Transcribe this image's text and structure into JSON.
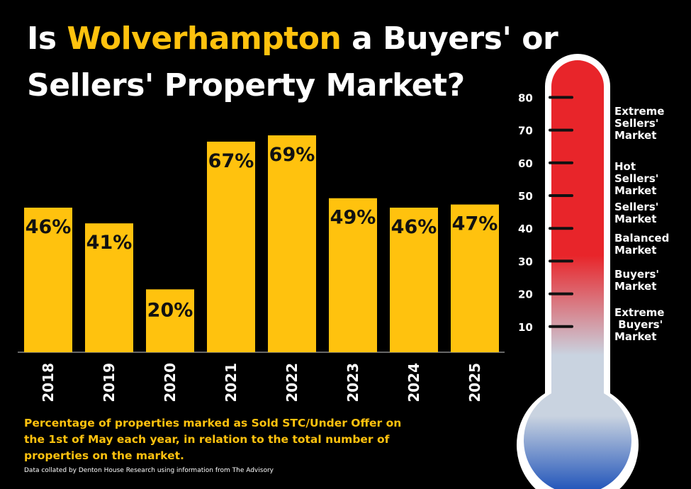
{
  "title": {
    "prefix": "Is ",
    "highlight": "Wolverhampton",
    "line1_suffix": " a Buyers' or",
    "line2": "Sellers' Property Market?"
  },
  "chart_data": {
    "type": "bar",
    "categories": [
      "2018",
      "2019",
      "2020",
      "2021",
      "2022",
      "2023",
      "2024",
      "2025"
    ],
    "values": [
      46,
      41,
      20,
      67,
      69,
      49,
      46,
      47
    ],
    "data_labels": [
      "46%",
      "41%",
      "20%",
      "67%",
      "69%",
      "49%",
      "46%",
      "47%"
    ],
    "ylim": [
      0,
      80
    ],
    "bar_color": "#FFC20E",
    "grid": false
  },
  "thermometer": {
    "ticks": [
      "80",
      "70",
      "60",
      "50",
      "40",
      "30",
      "20",
      "10"
    ],
    "tick_values": [
      80,
      70,
      60,
      50,
      40,
      30,
      20,
      10
    ],
    "labels": [
      {
        "text": "Extreme Sellers' Market",
        "lines": [
          "Extreme",
          "Sellers'",
          "Market"
        ],
        "value": 72
      },
      {
        "text": "Hot Sellers' Market",
        "lines": [
          "Hot",
          "Sellers'",
          "Market"
        ],
        "value": 55
      },
      {
        "text": "Sellers' Market",
        "lines": [
          "Sellers'",
          "Market"
        ],
        "value": 44.5
      },
      {
        "text": "Balanced Market",
        "lines": [
          "Balanced",
          "Market"
        ],
        "value": 35
      },
      {
        "text": "Buyers' Market",
        "lines": [
          "Buyers'",
          "Market"
        ],
        "value": 24
      },
      {
        "text": "Extreme Buyers' Market",
        "lines": [
          "Extreme",
          " Buyers'",
          "Market"
        ],
        "value": 10.5
      }
    ],
    "colors": {
      "hot": "#E8252A",
      "mid": "#C9D3E0",
      "cold": "#1A4FB8"
    }
  },
  "caption": "Percentage of properties marked as Sold STC/Under Offer on the 1st of May each year, in relation to the total number of properties on the market.",
  "source": "Data collated by Denton House Research using information from The Advisory"
}
